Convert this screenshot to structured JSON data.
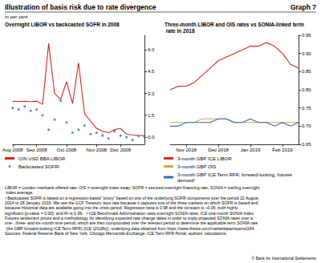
{
  "title": "Illustration of basis risk due to rate divergence",
  "graph_label": "Graph 7",
  "unit": "In per cent",
  "notes": [
    "LIBOR = London interbank offered rate; OIS = overnight index swap; SOFR = secured overnight financing rate; SONIA = sterling overnight index average.",
    "¹ Backcasted SOFR is based on a regression-based “proxy” based on one of the underlying SOFR components over the period 22 August 2014 to 28 January 2019. We use the GCF Treasury repo rate because it captures one of the three markets on which SOFR is based and because historical data are available going into the crisis period. Regression beta is 0.98 and the constant is –0.06, both highly significant (p-value = 0.00), and R² is 0.99.",
    "² ICE Benchmark Administration uses overnight SONIA rates, ICE one-month SONIA Index Futures settlement prices and a methodology for identifying expected rate change dates in order to imply projected SONIA rates over a one-, three- and six-month time period, which are then compounded over the relevant period to determine the applicable term SONIA rate (the GBP forward-looking ICE Term RFR) (ICE (2018b)); underlying data obtained from https://www.theice.com/marketdata/reports/244."
  ],
  "sources": "Sources: Federal Reserve Bank of New York; Chicago Mercantile Exchange; ICE Term RFR Portal; authors’ calculations.",
  "copyright": "© Bank for International Settlements",
  "chart_data": [
    {
      "type": "line",
      "title": "Overnight LIBOR vs backcasted SOFR in 2008",
      "categories": [
        "Aug 2008",
        null,
        null,
        null,
        "Sep 2008",
        null,
        null,
        null,
        null,
        "Oct 2008",
        null,
        null,
        null,
        null,
        "Nov 2008",
        null,
        null,
        null,
        "Dec 2008",
        null,
        null,
        null,
        null
      ],
      "series": [
        {
          "name": "O/N USD BBA LIBOR",
          "color": "#d7261e",
          "values": [
            2.46,
            2.45,
            2.46,
            2.44,
            2.47,
            2.25,
            6.44,
            3.0,
            2.6,
            3.8,
            2.3,
            5.1,
            1.6,
            1.1,
            0.6,
            0.4,
            0.3,
            0.5,
            0.6,
            0.2,
            0.15,
            0.12,
            0.1
          ]
        },
        {
          "name": "Backcasted SOFR¹",
          "color": "#2f6db5",
          "type": "scatter",
          "marker": "circle",
          "values": [
            2.0,
            1.9,
            2.1,
            1.8,
            1.9,
            1.5,
            0.5,
            1.2,
            2.5,
            1.0,
            0.3,
            0.5,
            0.8,
            0.2,
            0.3,
            0.1,
            -0.1,
            0.4,
            0.1,
            0.0,
            -0.2,
            0.05,
            0.0
          ]
        }
      ],
      "ylim": [
        -0.5,
        7
      ],
      "yticks": [
        {
          "value": 0,
          "label": "0.0"
        },
        1.5,
        {
          "value": 3,
          "label": "3.0"
        },
        4.5,
        {
          "value": 6,
          "label": "6.0"
        }
      ],
      "grid": false,
      "legend": "bottom"
    },
    {
      "type": "line",
      "title": "Three-month LIBOR and OIS rates vs SONIA-linked term rate in 2018",
      "categories": [
        null,
        null,
        "Nov 2018",
        null,
        null,
        null,
        "Dec 2018",
        null,
        null,
        null,
        "Jan 2019",
        null,
        null,
        null,
        "Feb 2019",
        null,
        null
      ],
      "series": [
        {
          "name": "3-month GBP ICE LIBOR",
          "color": "#d7261e",
          "values": [
            0.8,
            0.81,
            0.81,
            0.82,
            0.84,
            0.86,
            0.88,
            0.89,
            0.9,
            0.91,
            0.92,
            0.92,
            0.93,
            0.92,
            0.9,
            0.87,
            0.86
          ]
        },
        {
          "name": "3-month GBP OIS",
          "color": "#e8a33d",
          "values": [
            0.71,
            0.71,
            0.71,
            0.71,
            0.72,
            0.72,
            0.72,
            0.72,
            0.71,
            0.71,
            0.71,
            0.71,
            0.71,
            0.71,
            0.71,
            0.71,
            0.71
          ]
        },
        {
          "name": "3-month GBP ICE Term RFR, forward-looking, futures derived²",
          "color": "#2f6db5",
          "values": [
            0.7,
            0.7,
            0.71,
            0.71,
            0.71,
            0.71,
            0.72,
            0.72,
            0.71,
            0.71,
            0.72,
            0.71,
            0.71,
            0.7,
            0.71,
            0.7,
            0.71
          ]
        }
      ],
      "ylim": [
        0.65,
        0.95
      ],
      "yticks": [
        0.65,
        {
          "value": 0.7,
          "label": "0.70"
        },
        0.75,
        {
          "value": 0.8,
          "label": "0.80"
        },
        0.85,
        {
          "value": 0.9,
          "label": "0.90"
        },
        0.95
      ],
      "grid": false,
      "legend": "bottom"
    }
  ]
}
